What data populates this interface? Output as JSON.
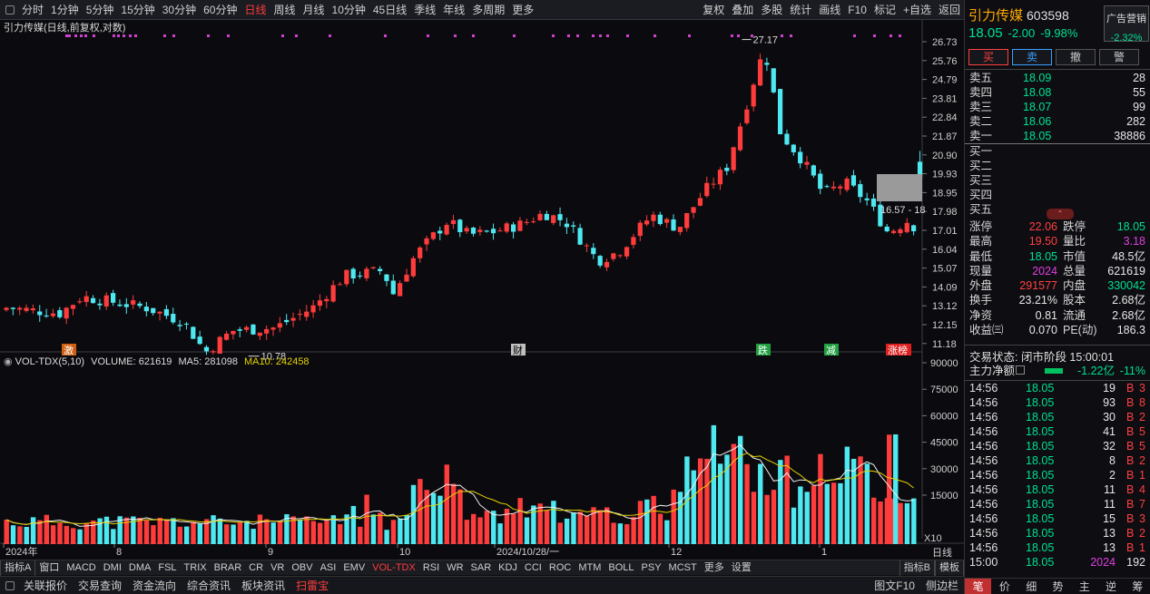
{
  "toolbar": {
    "left": [
      "分时",
      "1分钟",
      "5分钟",
      "15分钟",
      "30分钟",
      "60分钟",
      "日线",
      "周线",
      "月线",
      "10分钟",
      "45日线",
      "季线",
      "年线",
      "多周期",
      "更多"
    ],
    "active": "日线",
    "right": [
      "复权",
      "叠加",
      "多股",
      "统计",
      "画线",
      "F10",
      "标记",
      "+自选",
      "返回"
    ]
  },
  "chart_title": "引力传媒(日线,前复权,对数)",
  "price_axis": [
    "26.73",
    "25.76",
    "24.79",
    "23.81",
    "22.84",
    "21.87",
    "20.90",
    "19.93",
    "18.95",
    "17.98",
    "17.01",
    "16.04",
    "15.07",
    "14.09",
    "13.12",
    "12.15",
    "11.18"
  ],
  "high_label": "27.17",
  "low_label": "10.78",
  "range_label": "16.57 - 18",
  "events": [
    "激",
    "财",
    "跌",
    "减",
    "涨榜"
  ],
  "volume": {
    "title": "VOL-TDX(5,10)",
    "volume_label": "VOLUME: 621619",
    "ma5_label": "MA5: 281098",
    "ma10_label": "MA10: 242458",
    "axis": [
      "90000",
      "75000",
      "60000",
      "45000",
      "30000",
      "15000"
    ],
    "unit": "X10"
  },
  "x_axis": [
    "2024年",
    "8",
    "9",
    "10",
    "2024/10/28/一",
    "12",
    "1"
  ],
  "x_right": "日线",
  "indicator_tabs": [
    "指标A",
    "窗口",
    "MACD",
    "DMI",
    "DMA",
    "FSL",
    "TRIX",
    "BRAR",
    "CR",
    "VR",
    "OBV",
    "ASI",
    "EMV",
    "VOL-TDX",
    "RSI",
    "WR",
    "SAR",
    "KDJ",
    "CCI",
    "ROC",
    "MTM",
    "BOLL",
    "PSY",
    "MCST",
    "更多",
    "设置"
  ],
  "indicator_active": "VOL-TDX",
  "indicator_right": [
    "指标B",
    "模板"
  ],
  "status_tabs": [
    "关联报价",
    "交易查询",
    "资金流向",
    "综合资讯",
    "板块资讯",
    "扫雷宝"
  ],
  "status_right": [
    "图文F10",
    "侧边栏"
  ],
  "stock": {
    "name": "引力传媒",
    "code": "603598",
    "price": "18.05",
    "change": "-2.00",
    "pct": "-9.98%",
    "ad_title": "广告营销",
    "ad_pct": "-2.32%"
  },
  "trade_buttons": [
    "买",
    "卖",
    "撤",
    "警"
  ],
  "sell_orders": [
    {
      "label": "卖五",
      "price": "18.09",
      "vol": "28"
    },
    {
      "label": "卖四",
      "price": "18.08",
      "vol": "55"
    },
    {
      "label": "卖三",
      "price": "18.07",
      "vol": "99"
    },
    {
      "label": "卖二",
      "price": "18.06",
      "vol": "282"
    },
    {
      "label": "卖一",
      "price": "18.05",
      "vol": "38886"
    }
  ],
  "buy_orders": [
    {
      "label": "买一",
      "price": "",
      "vol": ""
    },
    {
      "label": "买二",
      "price": "",
      "vol": ""
    },
    {
      "label": "买三",
      "price": "",
      "vol": ""
    },
    {
      "label": "买四",
      "price": "",
      "vol": ""
    },
    {
      "label": "买五",
      "price": "",
      "vol": ""
    }
  ],
  "info": [
    {
      "a": "涨停",
      "av": "22.06",
      "ac": "red",
      "b": "跌停",
      "bv": "18.05",
      "bc": "green"
    },
    {
      "a": "最高",
      "av": "19.50",
      "ac": "red",
      "b": "量比",
      "bv": "3.18",
      "bc": "mag"
    },
    {
      "a": "最低",
      "av": "18.05",
      "ac": "green",
      "b": "市值",
      "bv": "48.5亿",
      "bc": "white"
    },
    {
      "a": "现量",
      "av": "2024",
      "ac": "mag",
      "b": "总量",
      "bv": "621619",
      "bc": "white"
    },
    {
      "a": "外盘",
      "av": "291577",
      "ac": "red",
      "b": "内盘",
      "bv": "330042",
      "bc": "green"
    },
    {
      "a": "换手",
      "av": "23.21%",
      "ac": "white",
      "b": "股本",
      "bv": "2.68亿",
      "bc": "white"
    },
    {
      "a": "净资",
      "av": "0.81",
      "ac": "white",
      "b": "流通",
      "bv": "2.68亿",
      "bc": "white"
    },
    {
      "a": "收益㈢",
      "av": "0.070",
      "ac": "white",
      "b": "PE(动)",
      "bv": "186.3",
      "bc": "white"
    }
  ],
  "trade_state": "交易状态: 闭市阶段 15:00:01",
  "net_flow": {
    "label": "主力净额",
    "value": "-1.22亿",
    "pct": "-11%"
  },
  "ticks": [
    {
      "t": "14:56",
      "p": "18.05",
      "v": "19",
      "s": "B",
      "n": "3"
    },
    {
      "t": "14:56",
      "p": "18.05",
      "v": "93",
      "s": "B",
      "n": "8"
    },
    {
      "t": "14:56",
      "p": "18.05",
      "v": "30",
      "s": "B",
      "n": "2"
    },
    {
      "t": "14:56",
      "p": "18.05",
      "v": "41",
      "s": "B",
      "n": "5"
    },
    {
      "t": "14:56",
      "p": "18.05",
      "v": "32",
      "s": "B",
      "n": "5"
    },
    {
      "t": "14:56",
      "p": "18.05",
      "v": "8",
      "s": "B",
      "n": "2"
    },
    {
      "t": "14:56",
      "p": "18.05",
      "v": "2",
      "s": "B",
      "n": "1"
    },
    {
      "t": "14:56",
      "p": "18.05",
      "v": "11",
      "s": "B",
      "n": "4"
    },
    {
      "t": "14:56",
      "p": "18.05",
      "v": "11",
      "s": "B",
      "n": "7"
    },
    {
      "t": "14:56",
      "p": "18.05",
      "v": "15",
      "s": "B",
      "n": "3"
    },
    {
      "t": "14:56",
      "p": "18.05",
      "v": "13",
      "s": "B",
      "n": "2"
    },
    {
      "t": "14:56",
      "p": "18.05",
      "v": "13",
      "s": "B",
      "n": "1"
    },
    {
      "t": "15:00",
      "p": "18.05",
      "v": "2024",
      "s": "",
      "n": "192"
    }
  ],
  "right_footer": [
    "笔",
    "价",
    "细",
    "势",
    "主",
    "逆",
    "筹"
  ]
}
